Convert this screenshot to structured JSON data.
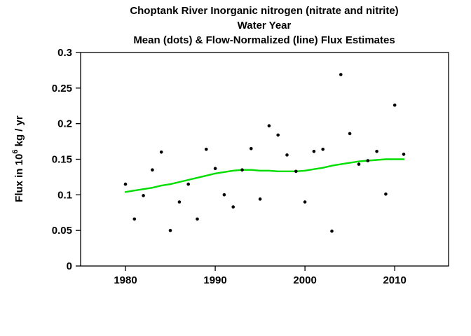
{
  "title": {
    "line1": "Choptank River   Inorganic nitrogen (nitrate and nitrite)",
    "line2": "Water Year",
    "line3": "Mean (dots) & Flow-Normalized (line) Flux Estimates"
  },
  "axes": {
    "ylabel_prefix": "Flux in 10",
    "ylabel_sup": "6",
    "ylabel_suffix": " kg / yr"
  },
  "colors": {
    "background": "#ffffff",
    "axis": "#000000",
    "dot": "#000000",
    "line": "#00dd00"
  },
  "chart_data": {
    "type": "scatter",
    "title": "Choptank River  Inorganic nitrogen (nitrate and nitrite) - Water Year - Mean (dots) & Flow-Normalized (line) Flux Estimates",
    "xlabel": "Water Year",
    "ylabel": "Flux in 10^6 kg/yr",
    "xlim": [
      1975,
      2016
    ],
    "ylim": [
      0,
      0.3
    ],
    "x_ticks": [
      1980,
      1990,
      2000,
      2010
    ],
    "x_tick_labels": [
      "1980",
      "1990",
      "2000",
      "2010"
    ],
    "y_ticks": [
      0,
      0.05,
      0.1,
      0.15,
      0.2,
      0.25,
      0.3
    ],
    "y_tick_labels": [
      "0",
      "0.05",
      "0.1",
      "0.15",
      "0.2",
      "0.25",
      "0.3"
    ],
    "x": [
      1980,
      1981,
      1982,
      1983,
      1984,
      1985,
      1986,
      1987,
      1988,
      1989,
      1990,
      1991,
      1992,
      1993,
      1994,
      1995,
      1996,
      1997,
      1998,
      1999,
      2000,
      2001,
      2002,
      2003,
      2004,
      2005,
      2006,
      2007,
      2008,
      2009,
      2010,
      2011
    ],
    "series": [
      {
        "name": "Mean (dots)",
        "type": "scatter",
        "values": [
          0.115,
          0.066,
          0.099,
          0.135,
          0.16,
          0.05,
          0.09,
          0.115,
          0.066,
          0.164,
          0.137,
          0.1,
          0.083,
          0.135,
          0.165,
          0.094,
          0.197,
          0.184,
          0.156,
          0.133,
          0.09,
          0.161,
          0.164,
          0.049,
          0.269,
          0.186,
          0.143,
          0.148,
          0.161,
          0.101,
          0.226,
          0.157
        ]
      },
      {
        "name": "Flow-Normalized (line)",
        "type": "line",
        "values": [
          0.104,
          0.106,
          0.108,
          0.11,
          0.113,
          0.115,
          0.118,
          0.121,
          0.124,
          0.127,
          0.13,
          0.132,
          0.134,
          0.135,
          0.135,
          0.134,
          0.134,
          0.133,
          0.133,
          0.133,
          0.134,
          0.136,
          0.138,
          0.141,
          0.143,
          0.145,
          0.147,
          0.148,
          0.149,
          0.15,
          0.15,
          0.15
        ]
      }
    ],
    "legend": "none",
    "grid": false
  }
}
